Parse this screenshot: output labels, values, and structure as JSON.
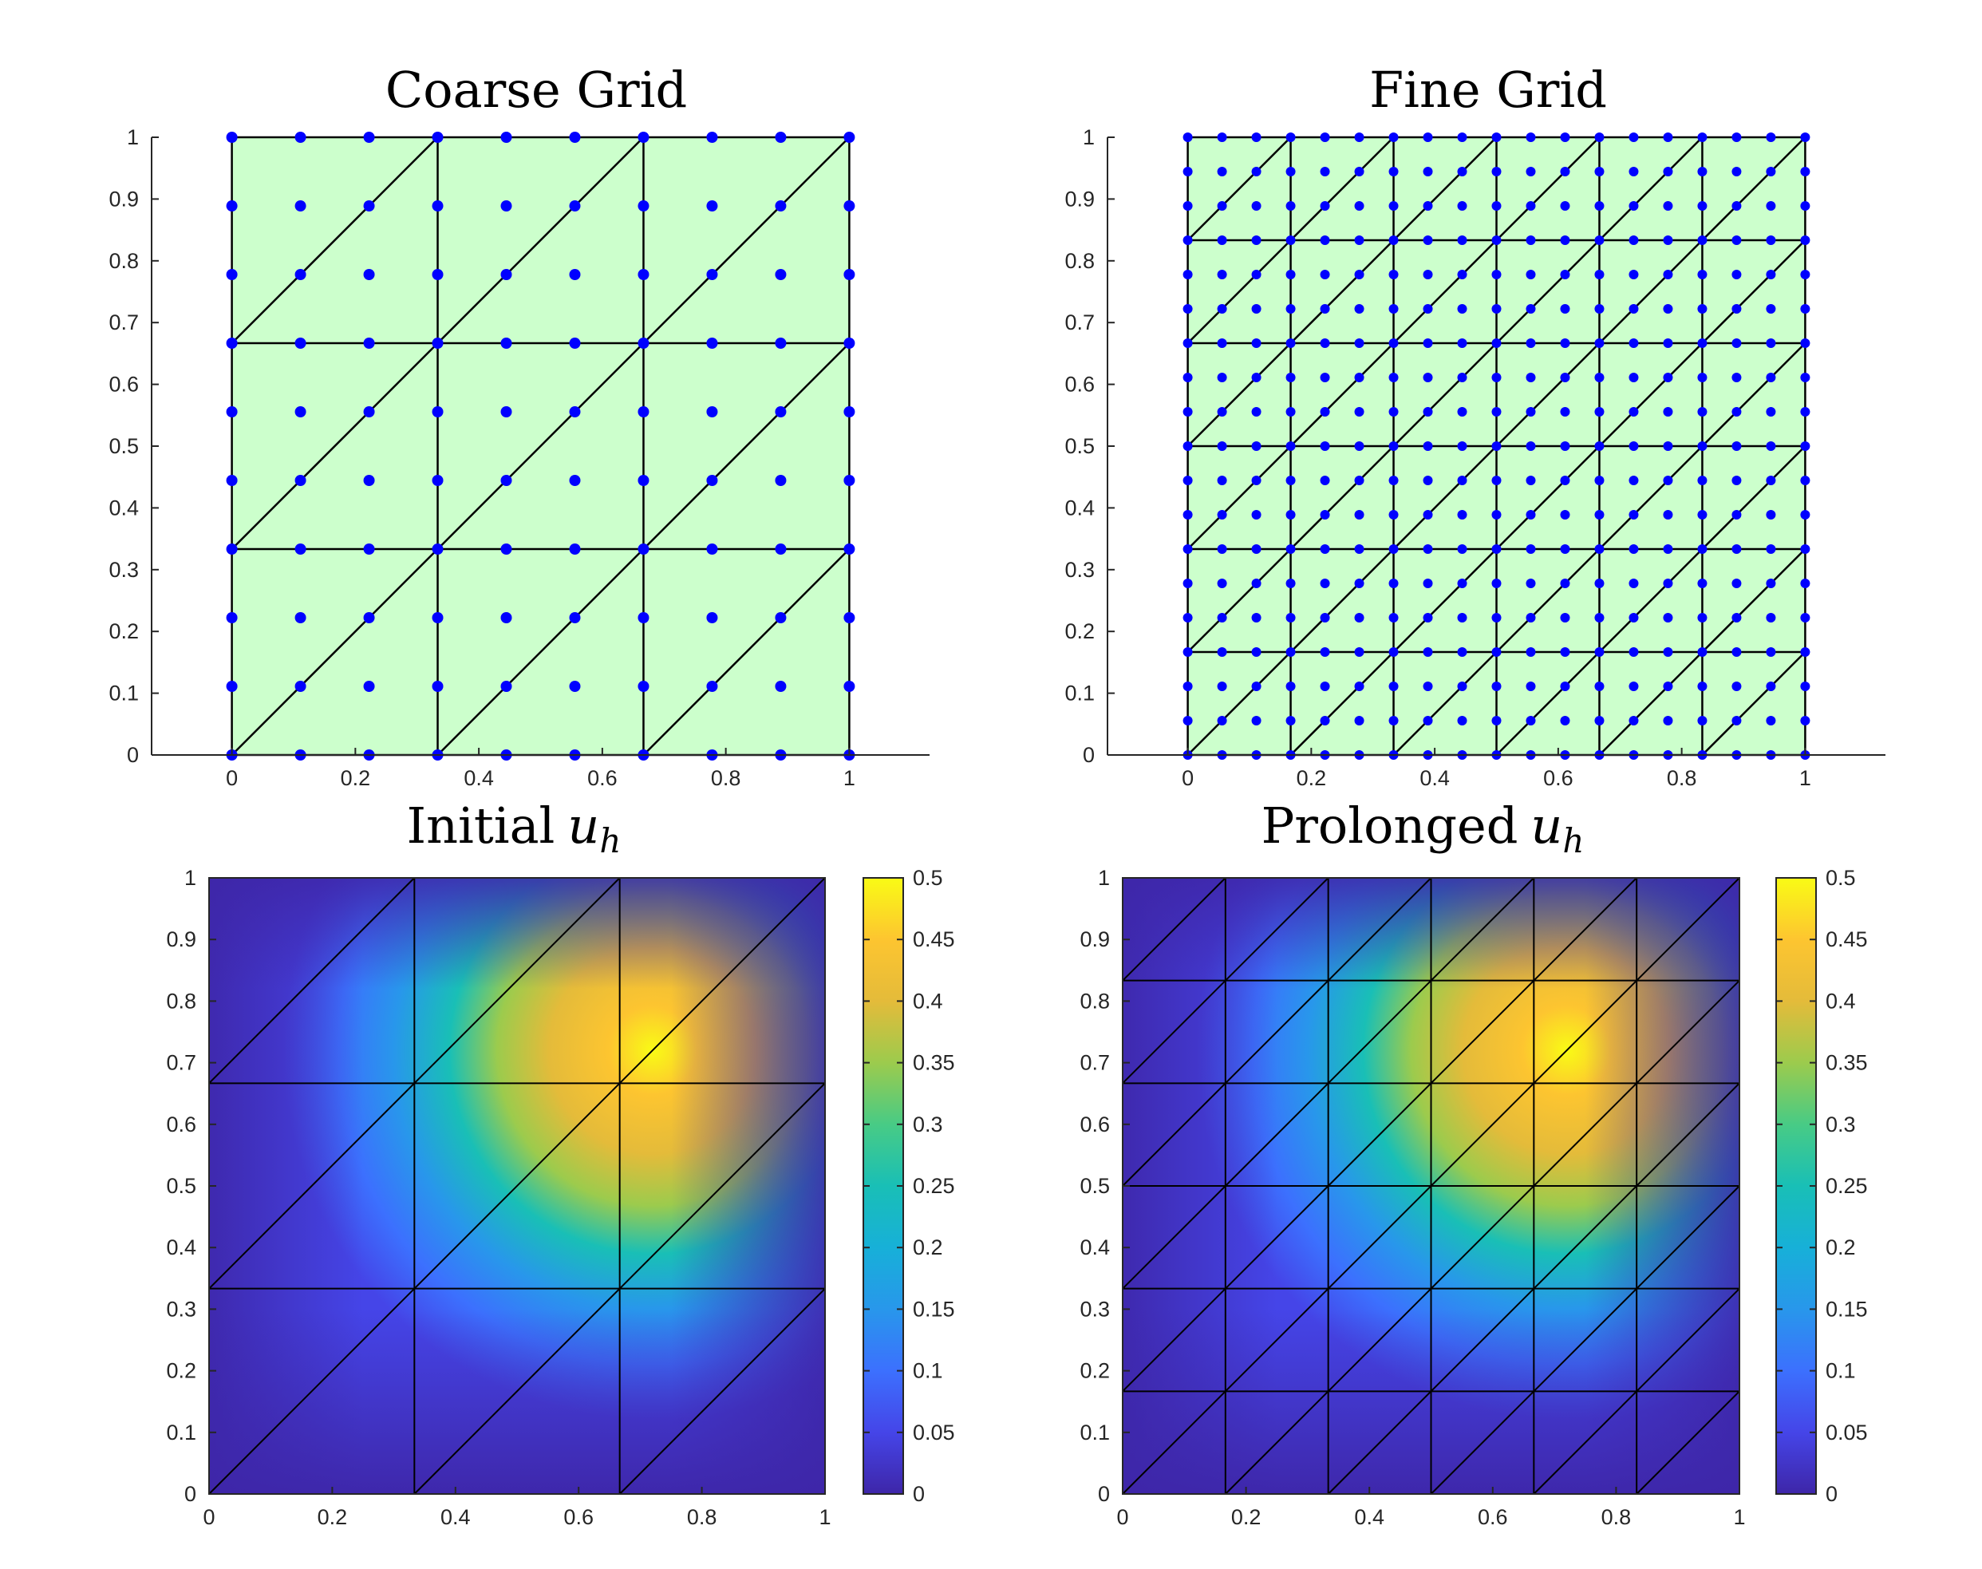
{
  "chart_data": [
    {
      "type": "scatter",
      "title": "Coarse Grid",
      "mesh_divisions": 3,
      "element_fill": "#ccffcc",
      "edge_color": "#000000",
      "node_color": "#0000ff",
      "xlim": [
        -0.13,
        1.13
      ],
      "ylim": [
        0,
        1
      ],
      "xticks": [
        "0",
        "0.2",
        "0.4",
        "0.6",
        "0.8",
        "1"
      ],
      "xtick_values": [
        0,
        0.2,
        0.4,
        0.6,
        0.8,
        1
      ],
      "yticks": [
        "0",
        "0.1",
        "0.2",
        "0.3",
        "0.4",
        "0.5",
        "0.6",
        "0.7",
        "0.8",
        "0.9",
        "1"
      ],
      "ytick_values": [
        0,
        0.1,
        0.2,
        0.3,
        0.4,
        0.5,
        0.6,
        0.7,
        0.8,
        0.9,
        1
      ]
    },
    {
      "type": "scatter",
      "title": "Fine Grid",
      "mesh_divisions": 6,
      "element_fill": "#ccffcc",
      "edge_color": "#000000",
      "node_color": "#0000ff",
      "xlim": [
        -0.13,
        1.13
      ],
      "ylim": [
        0,
        1
      ],
      "xticks": [
        "0",
        "0.2",
        "0.4",
        "0.6",
        "0.8",
        "1"
      ],
      "xtick_values": [
        0,
        0.2,
        0.4,
        0.6,
        0.8,
        1
      ],
      "yticks": [
        "0",
        "0.1",
        "0.2",
        "0.3",
        "0.4",
        "0.5",
        "0.6",
        "0.7",
        "0.8",
        "0.9",
        "1"
      ],
      "ytick_values": [
        0,
        0.1,
        0.2,
        0.3,
        0.4,
        0.5,
        0.6,
        0.7,
        0.8,
        0.9,
        1
      ]
    },
    {
      "type": "heatmap",
      "title": "Initial",
      "title_symbol": "u",
      "title_subscript": "h",
      "mesh_divisions": 3,
      "field_peak": [
        0.72,
        0.72
      ],
      "field_max": 0.5,
      "xlim": [
        0,
        1
      ],
      "ylim": [
        0,
        1
      ],
      "xticks": [
        "0",
        "0.2",
        "0.4",
        "0.6",
        "0.8",
        "1"
      ],
      "xtick_values": [
        0,
        0.2,
        0.4,
        0.6,
        0.8,
        1
      ],
      "yticks": [
        "0",
        "0.1",
        "0.2",
        "0.3",
        "0.4",
        "0.5",
        "0.6",
        "0.7",
        "0.8",
        "0.9",
        "1"
      ],
      "ytick_values": [
        0,
        0.1,
        0.2,
        0.3,
        0.4,
        0.5,
        0.6,
        0.7,
        0.8,
        0.9,
        1
      ],
      "colorbar_ticks": [
        "0",
        "0.05",
        "0.1",
        "0.15",
        "0.2",
        "0.25",
        "0.3",
        "0.35",
        "0.4",
        "0.45",
        "0.5"
      ],
      "colorbar_values": [
        0,
        0.05,
        0.1,
        0.15,
        0.2,
        0.25,
        0.3,
        0.35,
        0.4,
        0.45,
        0.5
      ]
    },
    {
      "type": "heatmap",
      "title": "Prolonged",
      "title_symbol": "u",
      "title_subscript": "h",
      "mesh_divisions": 6,
      "field_peak": [
        0.72,
        0.72
      ],
      "field_max": 0.5,
      "xlim": [
        0,
        1
      ],
      "ylim": [
        0,
        1
      ],
      "xticks": [
        "0",
        "0.2",
        "0.4",
        "0.6",
        "0.8",
        "1"
      ],
      "xtick_values": [
        0,
        0.2,
        0.4,
        0.6,
        0.8,
        1
      ],
      "yticks": [
        "0",
        "0.1",
        "0.2",
        "0.3",
        "0.4",
        "0.5",
        "0.6",
        "0.7",
        "0.8",
        "0.9",
        "1"
      ],
      "ytick_values": [
        0,
        0.1,
        0.2,
        0.3,
        0.4,
        0.5,
        0.6,
        0.7,
        0.8,
        0.9,
        1
      ],
      "colorbar_ticks": [
        "0",
        "0.05",
        "0.1",
        "0.15",
        "0.2",
        "0.25",
        "0.3",
        "0.35",
        "0.4",
        "0.45",
        "0.5"
      ],
      "colorbar_values": [
        0,
        0.05,
        0.1,
        0.15,
        0.2,
        0.25,
        0.3,
        0.35,
        0.4,
        0.45,
        0.5
      ]
    }
  ]
}
